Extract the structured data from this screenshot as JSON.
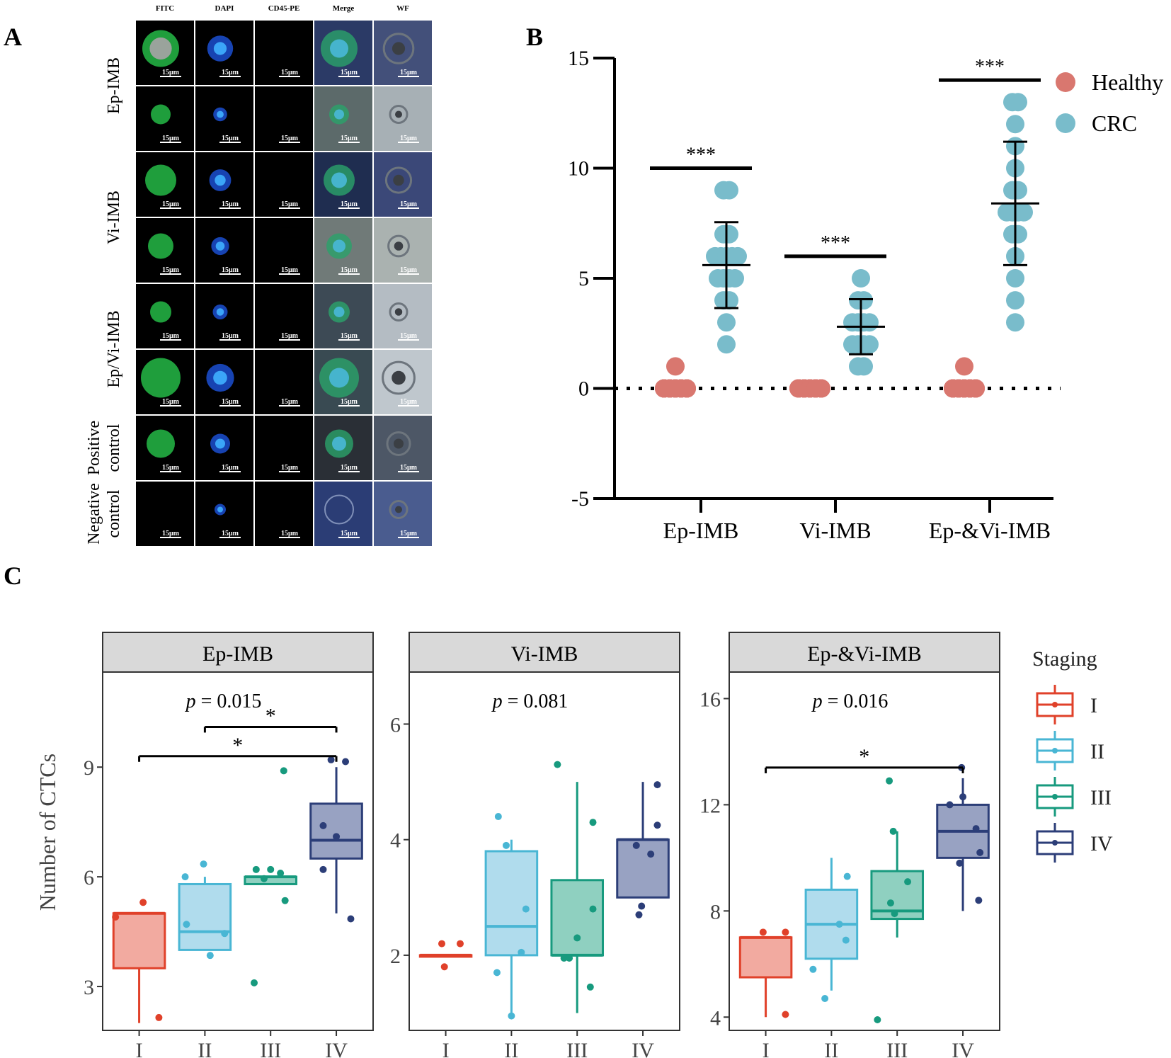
{
  "panel_labels": {
    "a": "A",
    "b": "B",
    "c": "C"
  },
  "colors": {
    "healthy": "#d9776f",
    "crc": "#79bccb",
    "stage_I": "#e0412a",
    "stage_II": "#49b6d4",
    "stage_III": "#179a7e",
    "stage_IV": "#2c3e78",
    "facet_strip": "#d9d9d9"
  },
  "panel_a": {
    "columns": [
      "FITC",
      "DAPI",
      "CD45-PE",
      "Merge",
      "WF"
    ],
    "row_groups": [
      {
        "label": "Ep-IMB",
        "rows": 2
      },
      {
        "label": "Vi-IMB",
        "rows": 2
      },
      {
        "label": "Ep/Vi-IMB",
        "rows": 2
      },
      {
        "label": "Positive control",
        "label_lines": [
          "Positive",
          "control"
        ],
        "rows": 1
      },
      {
        "label": "Negative control",
        "label_lines": [
          "Negative",
          "control"
        ],
        "rows": 1
      }
    ],
    "scale_bar": "15μm"
  },
  "chart_data": [
    {
      "type": "scatter",
      "panel": "B",
      "categories": [
        "Ep-IMB",
        "Vi-IMB",
        "Ep-&Vi-IMB"
      ],
      "ylim": [
        -5,
        15
      ],
      "yticks": [
        "15",
        "10",
        "5",
        "0",
        "-5"
      ],
      "reference_line": 0,
      "legend": {
        "position": "top-right",
        "entries": [
          "Healthy",
          "CRC"
        ]
      },
      "significance": [
        "***",
        "***",
        "***"
      ],
      "series": [
        {
          "name": "Healthy",
          "values": [
            [
              0,
              0,
              0,
              0,
              0,
              0,
              0,
              0,
              0,
              0,
              0,
              0,
              0,
              0,
              0,
              0,
              0,
              0,
              0,
              0,
              0,
              0,
              0,
              1
            ],
            [
              0,
              0,
              0,
              0,
              0,
              0,
              0,
              0,
              0,
              0,
              0,
              0,
              0,
              0,
              0,
              0,
              0,
              0,
              0,
              0,
              0,
              0,
              0,
              0
            ],
            [
              0,
              0,
              0,
              0,
              0,
              0,
              0,
              0,
              0,
              0,
              0,
              0,
              0,
              0,
              0,
              0,
              0,
              0,
              0,
              0,
              0,
              0,
              0,
              1
            ]
          ]
        },
        {
          "name": "CRC",
          "values": [
            [
              2,
              3,
              4,
              4,
              5,
              5,
              5,
              5,
              6,
              6,
              6,
              6,
              6,
              7,
              7,
              9,
              9
            ],
            [
              1,
              1,
              2,
              2,
              2,
              2,
              3,
              3,
              3,
              3,
              4,
              4,
              5
            ],
            [
              3,
              4,
              5,
              6,
              7,
              7,
              8,
              8,
              8,
              8,
              9,
              9,
              10,
              11,
              12,
              13,
              13
            ]
          ],
          "mean": [
            5.6,
            2.8,
            8.4
          ],
          "sd": [
            1.95,
            1.25,
            2.8
          ]
        }
      ]
    },
    {
      "type": "box",
      "panel": "C",
      "ylabel": "Number of CTCs",
      "categories": [
        "I",
        "II",
        "III",
        "IV"
      ],
      "legend": {
        "title": "Staging",
        "position": "right",
        "entries": [
          "I",
          "II",
          "III",
          "IV"
        ]
      },
      "facets": [
        {
          "title": "Ep-IMB",
          "p_label": "p",
          "p_text": " = 0.015",
          "ylim": [
            1.8,
            11.6
          ],
          "yticks": [
            3,
            6,
            9
          ],
          "ytick_labels": [
            "3",
            "6",
            "9"
          ],
          "boxes": [
            {
              "min": 2,
              "q1": 3.5,
              "median": 5,
              "q3": 5,
              "max": 5
            },
            {
              "min": 4,
              "q1": 4,
              "median": 4.5,
              "q3": 5.8,
              "max": 6
            },
            {
              "min": 5.8,
              "q1": 5.8,
              "median": 6,
              "q3": 6,
              "max": 6
            },
            {
              "min": 5,
              "q1": 6.5,
              "median": 7,
              "q3": 8,
              "max": 9
            }
          ],
          "points": [
            [
              [
                5.3,
                0.06
              ],
              [
                4.9,
                -0.36
              ],
              [
                2.15,
                0.3
              ]
            ],
            [
              [
                6.35,
                -0.02
              ],
              [
                6.0,
                -0.3
              ],
              [
                4.7,
                -0.28
              ],
              [
                4.45,
                0.3
              ],
              [
                3.85,
                0.08
              ]
            ],
            [
              [
                8.9,
                0.2
              ],
              [
                6.2,
                -0.22
              ],
              [
                6.2,
                0.0
              ],
              [
                6.1,
                0.15
              ],
              [
                5.95,
                -0.1
              ],
              [
                5.35,
                0.22
              ],
              [
                3.1,
                -0.25
              ]
            ],
            [
              [
                9.2,
                -0.08
              ],
              [
                9.15,
                0.14
              ],
              [
                7.4,
                -0.2
              ],
              [
                7.1,
                0.0
              ],
              [
                6.2,
                -0.2
              ],
              [
                4.85,
                0.22
              ]
            ]
          ],
          "brackets": [
            {
              "from": 1,
              "to": 3,
              "y": 10.1,
              "label": "*"
            },
            {
              "from": 0,
              "to": 3,
              "y": 9.3,
              "label": "*"
            }
          ]
        },
        {
          "title": "Vi-IMB",
          "p_label": "p",
          "p_text": " = 0.081",
          "ylim": [
            0.7,
            6.9
          ],
          "yticks": [
            2,
            4,
            6
          ],
          "ytick_labels": [
            "2",
            "4",
            "6"
          ],
          "boxes": [
            {
              "min": 2,
              "q1": 2,
              "median": 2,
              "q3": 2,
              "max": 2
            },
            {
              "min": 1,
              "q1": 2,
              "median": 2.5,
              "q3": 3.8,
              "max": 4
            },
            {
              "min": 1,
              "q1": 2,
              "median": 2,
              "q3": 3.3,
              "max": 5
            },
            {
              "min": 3,
              "q1": 3,
              "median": 4,
              "q3": 4,
              "max": 5
            }
          ],
          "points": [
            [
              [
                2.2,
                -0.06
              ],
              [
                2.2,
                0.22
              ],
              [
                1.8,
                -0.02
              ]
            ],
            [
              [
                4.4,
                -0.2
              ],
              [
                3.9,
                -0.08
              ],
              [
                2.8,
                0.22
              ],
              [
                2.05,
                0.15
              ],
              [
                1.7,
                -0.22
              ],
              [
                0.95,
                0.0
              ]
            ],
            [
              [
                5.3,
                -0.3
              ],
              [
                4.3,
                0.24
              ],
              [
                2.8,
                0.24
              ],
              [
                2.3,
                0.0
              ],
              [
                1.95,
                -0.2
              ],
              [
                1.95,
                -0.12
              ],
              [
                1.45,
                0.2
              ]
            ],
            [
              [
                4.95,
                0.22
              ],
              [
                4.25,
                0.22
              ],
              [
                3.9,
                -0.1
              ],
              [
                3.75,
                0.12
              ],
              [
                2.85,
                -0.02
              ],
              [
                2.7,
                -0.06
              ]
            ]
          ],
          "brackets": []
        },
        {
          "title": "Ep-&Vi-IMB",
          "p_label": "p",
          "p_text": " = 0.016",
          "ylim": [
            3.5,
            17.0
          ],
          "yticks": [
            4,
            8,
            12,
            16
          ],
          "ytick_labels": [
            "4",
            "8",
            "12",
            "16"
          ],
          "boxes": [
            {
              "min": 4,
              "q1": 5.5,
              "median": 7,
              "q3": 7,
              "max": 7
            },
            {
              "min": 5,
              "q1": 6.2,
              "median": 7.5,
              "q3": 8.8,
              "max": 10
            },
            {
              "min": 7,
              "q1": 7.7,
              "median": 8,
              "q3": 9.5,
              "max": 11
            },
            {
              "min": 8,
              "q1": 10,
              "median": 11,
              "q3": 12,
              "max": 13
            }
          ],
          "points": [
            [
              [
                7.2,
                -0.04
              ],
              [
                7.2,
                0.3
              ],
              [
                4.1,
                0.3
              ]
            ],
            [
              [
                9.3,
                0.24
              ],
              [
                7.5,
                0.12
              ],
              [
                6.9,
                0.22
              ],
              [
                5.8,
                -0.28
              ],
              [
                4.7,
                -0.1
              ]
            ],
            [
              [
                12.9,
                -0.12
              ],
              [
                11.0,
                -0.06
              ],
              [
                9.1,
                0.16
              ],
              [
                8.3,
                -0.1
              ],
              [
                7.9,
                -0.04
              ],
              [
                3.9,
                -0.3
              ]
            ],
            [
              [
                13.4,
                -0.02
              ],
              [
                12.3,
                0.0
              ],
              [
                12.0,
                -0.2
              ],
              [
                11.1,
                0.2
              ],
              [
                10.2,
                0.26
              ],
              [
                9.8,
                -0.05
              ],
              [
                8.4,
                0.24
              ]
            ]
          ],
          "brackets": [
            {
              "from": 0,
              "to": 3,
              "y": 13.4,
              "label": "*"
            }
          ]
        }
      ]
    }
  ]
}
